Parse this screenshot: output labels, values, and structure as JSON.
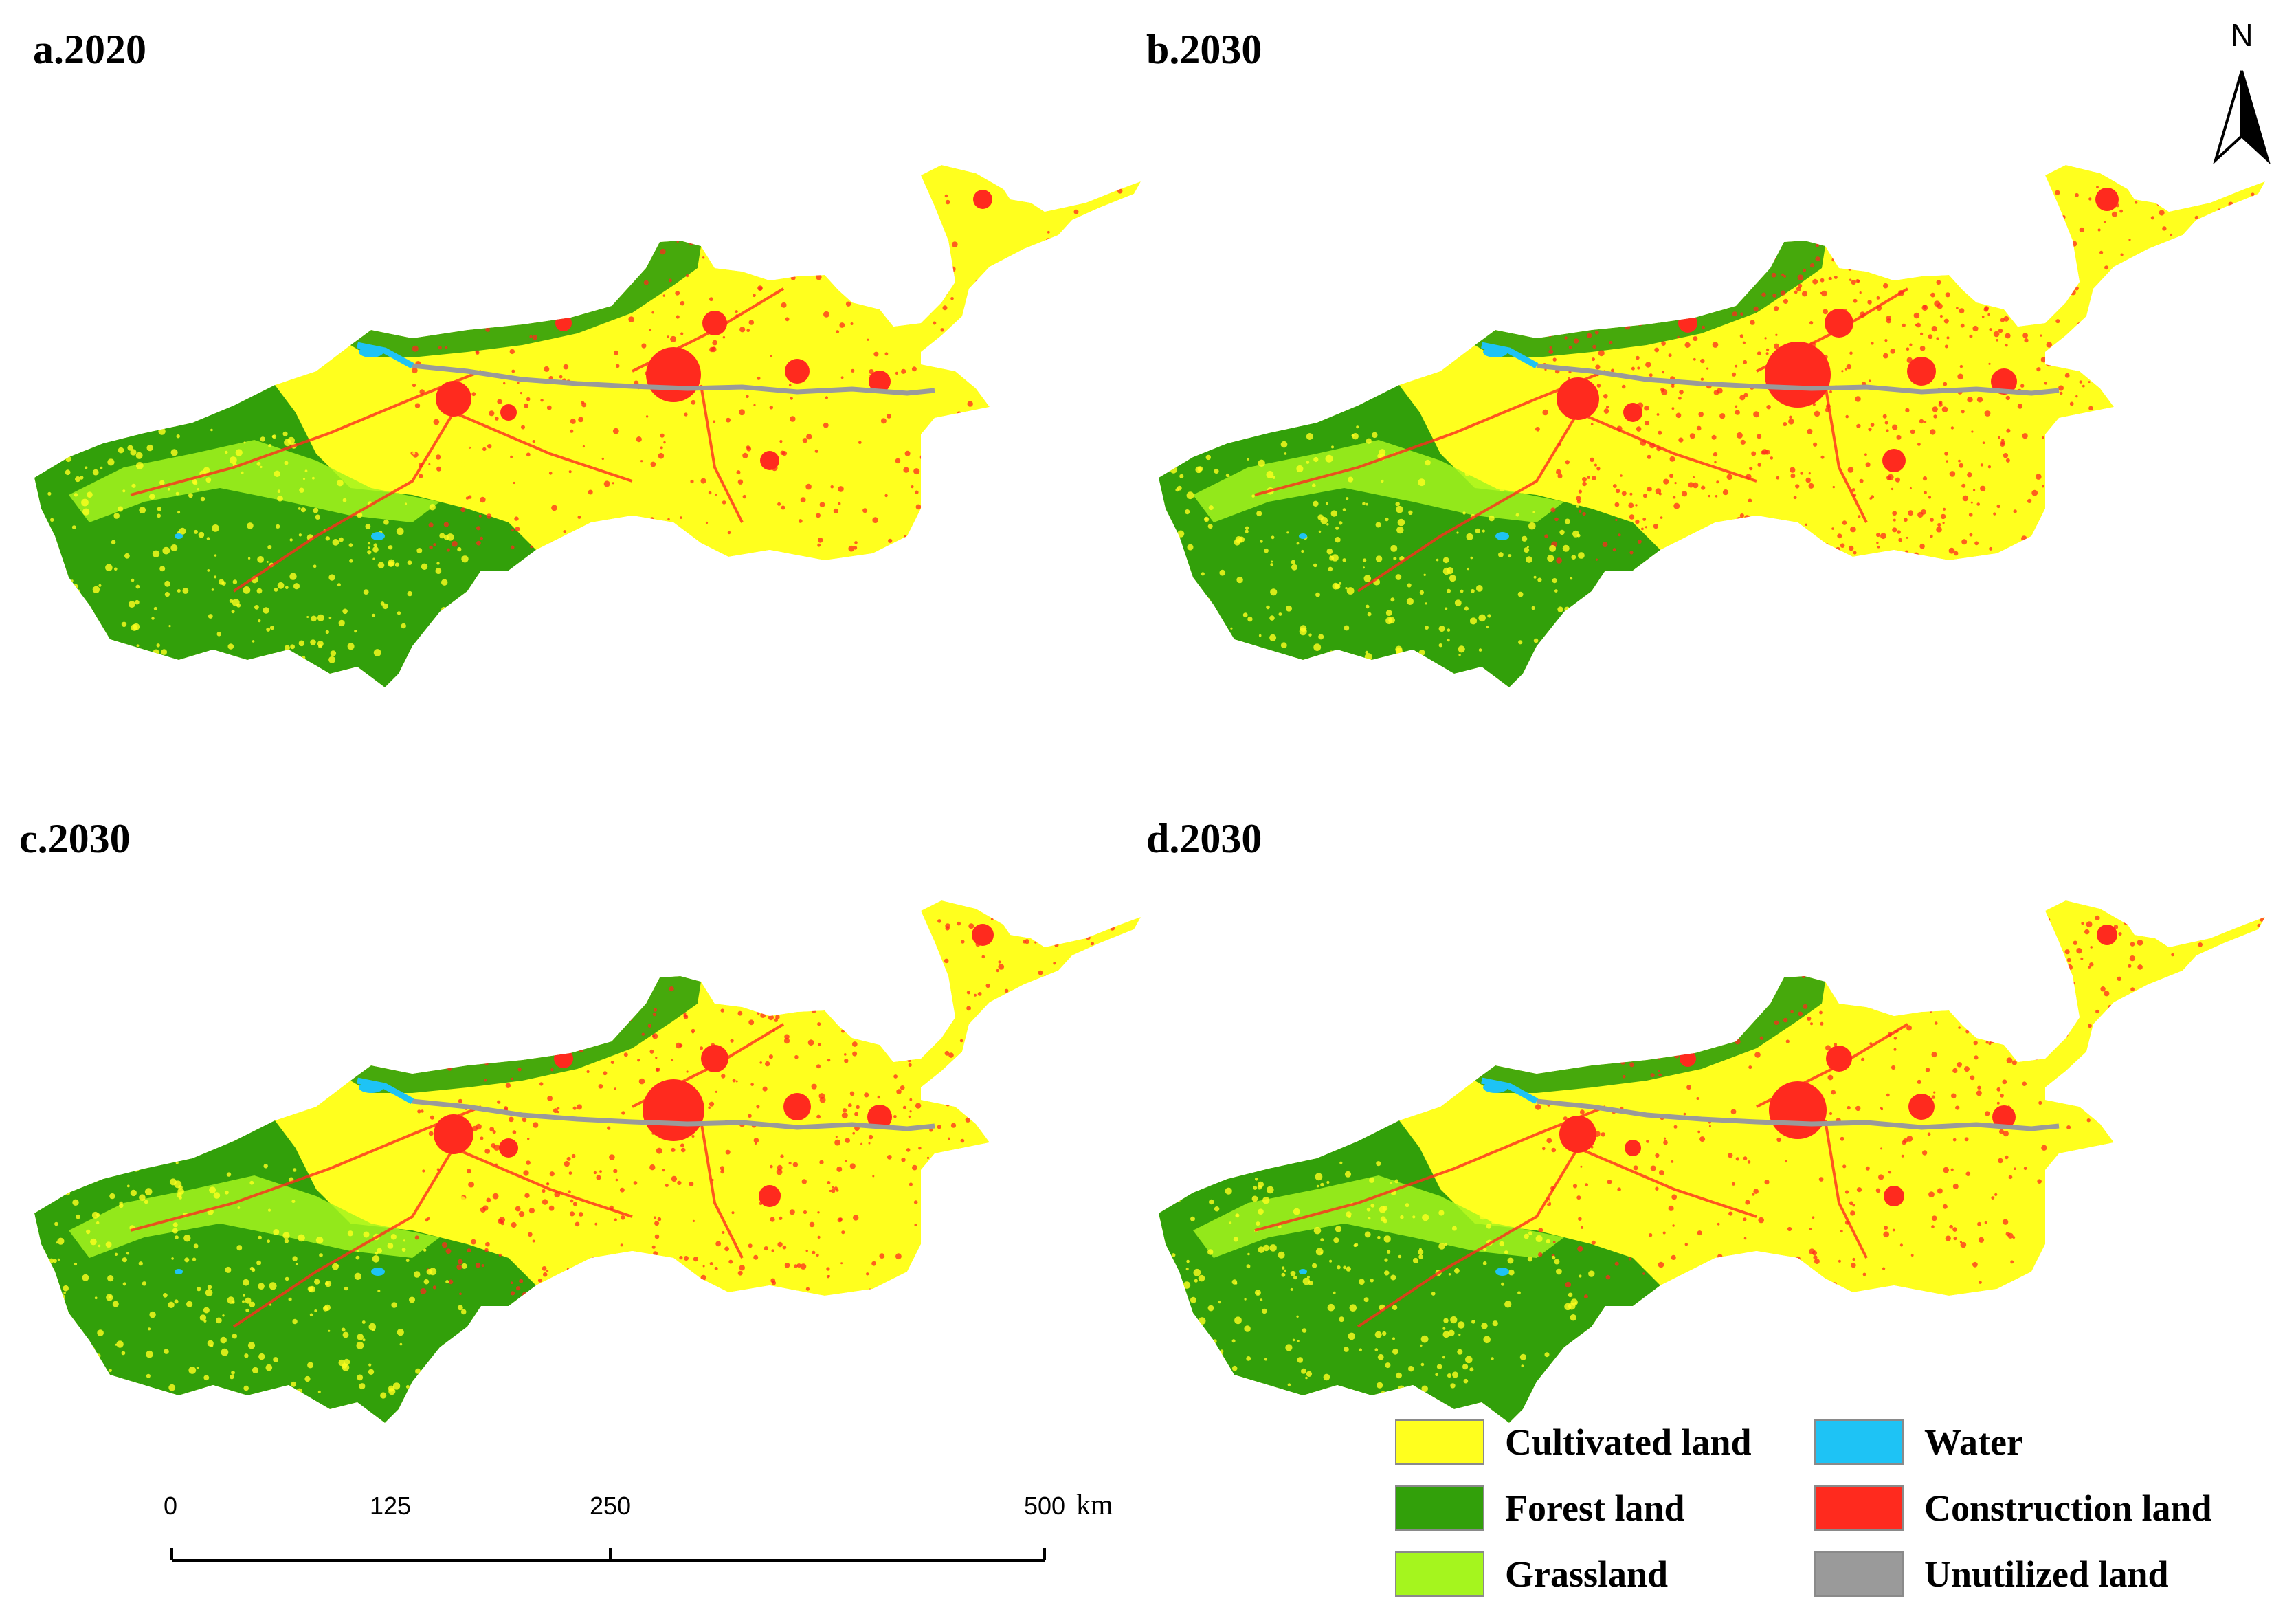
{
  "panels": [
    {
      "id": "a",
      "label": "a.2020",
      "construction_level": 0.35
    },
    {
      "id": "b",
      "label": "b.2030",
      "construction_level": 0.65
    },
    {
      "id": "c",
      "label": "c.2030",
      "construction_level": 0.55
    },
    {
      "id": "d",
      "label": "d.2030",
      "construction_level": 0.4
    }
  ],
  "north_arrow": {
    "label": "N"
  },
  "scale_bar": {
    "ticks": [
      "0",
      "125",
      "250",
      "500"
    ],
    "tick_values": [
      0,
      125,
      250,
      500
    ],
    "unit": "km"
  },
  "legend": {
    "items": [
      {
        "label": "Cultivated land",
        "color": "#ffff1e"
      },
      {
        "label": "Water",
        "color": "#1ec3f5"
      },
      {
        "label": "Forest land",
        "color": "#32a00a"
      },
      {
        "label": "Construction land",
        "color": "#ff2a1e"
      },
      {
        "label": "Grassland",
        "color": "#a5f51e"
      },
      {
        "label": "Unutilized land",
        "color": "#9a9a9a"
      }
    ]
  },
  "colors": {
    "cultivated": "#ffff1e",
    "forest": "#32a00a",
    "grassland": "#a5f51e",
    "water": "#1ec3f5",
    "construction": "#ff2a1e",
    "unutilized": "#9a9a9a"
  }
}
